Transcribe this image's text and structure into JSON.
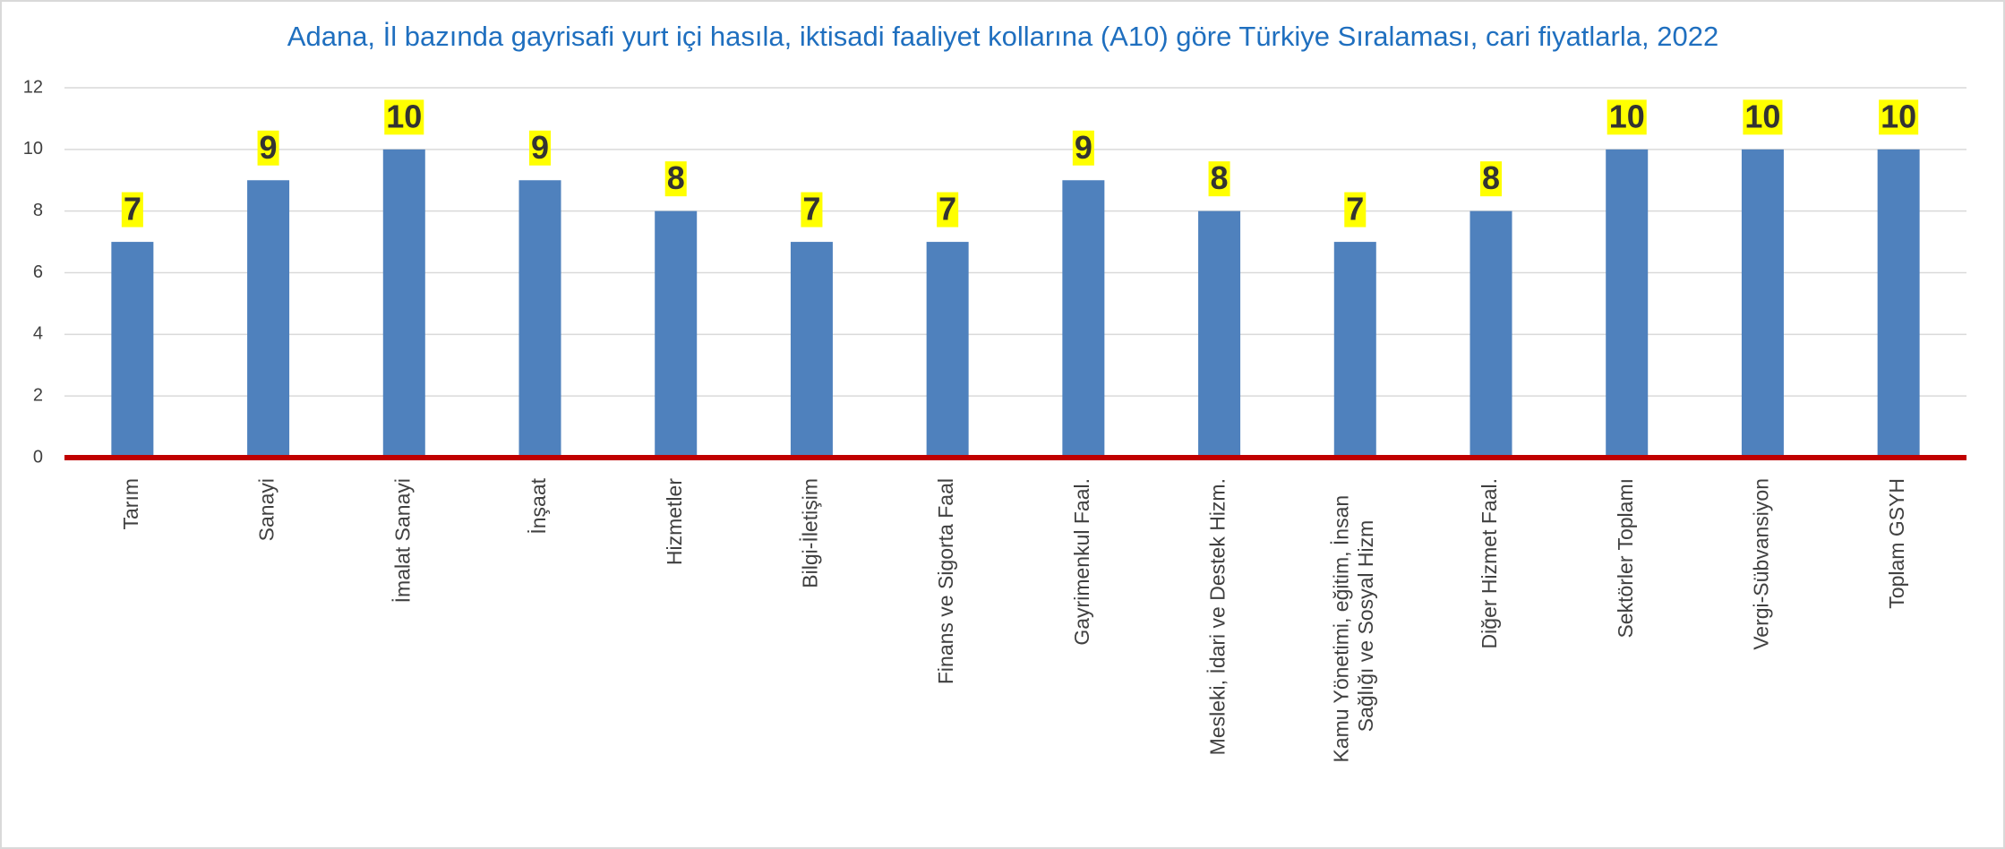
{
  "chart_data": {
    "type": "bar",
    "title": "Adana, İl bazında gayrisafi yurt içi hasıla, iktisadi faaliyet kollarına (A10) göre Türkiye Sıralaması, cari fiyatlarla, 2022",
    "categories": [
      "Tarım",
      "Sanayi",
      "İmalat Sanayi",
      "İnşaat",
      "Hizmetler",
      "Bilgi-İletişim",
      "Finans ve Sigorta Faal",
      "Gayrimenkul Faal.",
      "Mesleki, İdari ve Destek Hizm.",
      "Kamu Yönetimi, eğitim, İnsan Sağlığı ve Sosyal Hizm",
      "Diğer Hizmet Faal.",
      "Sektörler Toplamı",
      "Vergi-Sübvansiyon",
      "Toplam GSYH"
    ],
    "values": [
      7,
      9,
      10,
      9,
      8,
      7,
      7,
      9,
      8,
      7,
      8,
      10,
      10,
      10
    ],
    "color": "#4f81bd",
    "ylim": [
      0,
      12
    ],
    "yticks": [
      0,
      2,
      4,
      6,
      8,
      10,
      12
    ],
    "grid": true
  }
}
